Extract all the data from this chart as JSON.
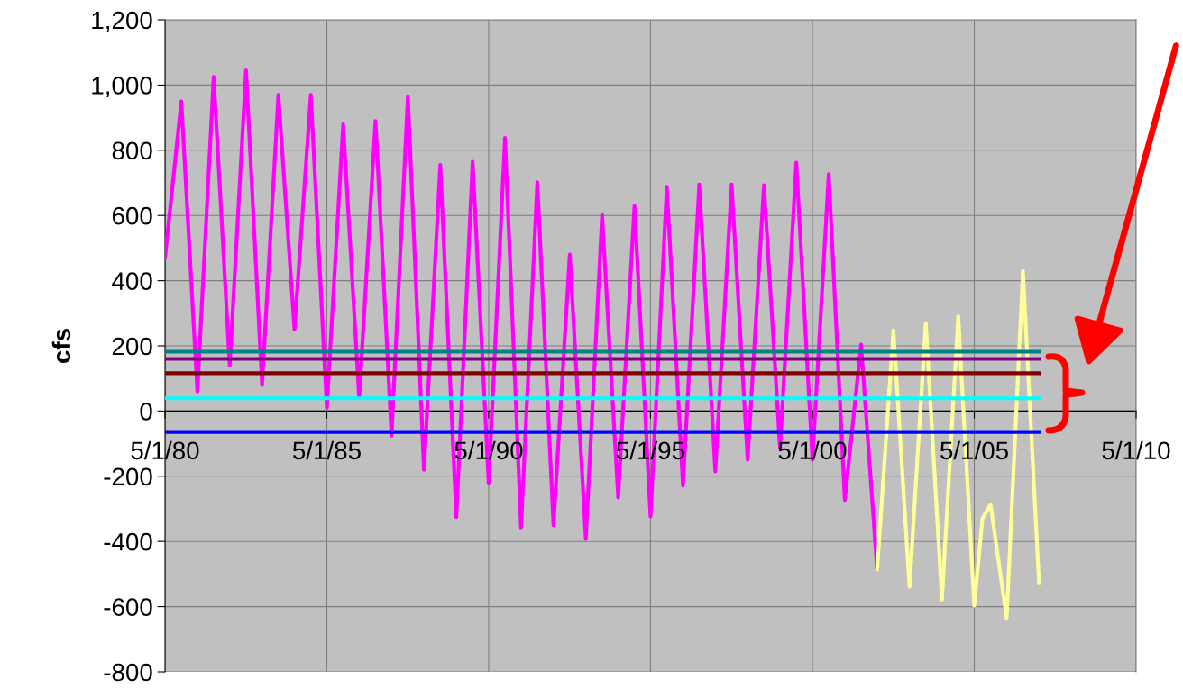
{
  "chart_data": {
    "type": "line",
    "ylabel": "cfs",
    "xlim": [
      "1980-05-01",
      "2010-05-01"
    ],
    "xticks": [
      {
        "value": "1980-05-01",
        "label": "5/1/80"
      },
      {
        "value": "1985-05-01",
        "label": "5/1/85"
      },
      {
        "value": "1990-05-01",
        "label": "5/1/90"
      },
      {
        "value": "1995-05-01",
        "label": "5/1/95"
      },
      {
        "value": "2000-05-01",
        "label": "5/1/00"
      },
      {
        "value": "2005-05-01",
        "label": "5/1/05"
      },
      {
        "value": "2010-05-01",
        "label": "5/1/10"
      }
    ],
    "ylim": [
      -800,
      1200
    ],
    "yticks": [
      {
        "value": -800,
        "label": "-800"
      },
      {
        "value": -600,
        "label": "-600"
      },
      {
        "value": -400,
        "label": "-400"
      },
      {
        "value": -200,
        "label": "-200"
      },
      {
        "value": 0,
        "label": "0"
      },
      {
        "value": 200,
        "label": "200"
      },
      {
        "value": 400,
        "label": "400"
      },
      {
        "value": 600,
        "label": "600"
      },
      {
        "value": 800,
        "label": "800"
      },
      {
        "value": 1000,
        "label": "1,000"
      },
      {
        "value": 1200,
        "label": "1,200"
      }
    ],
    "grid": true,
    "legend": false,
    "marker": "none",
    "line_style": "solid",
    "series": [
      {
        "color": "#ff00ff",
        "x": [
          "1980-05",
          "1980-11",
          "1981-05",
          "1981-11",
          "1982-05",
          "1982-11",
          "1983-05",
          "1983-11",
          "1984-05",
          "1984-11",
          "1985-05",
          "1985-11",
          "1986-05",
          "1986-11",
          "1987-05",
          "1987-11",
          "1988-05",
          "1988-11",
          "1989-05",
          "1989-11",
          "1990-05",
          "1990-11",
          "1991-05",
          "1991-11",
          "1992-05",
          "1992-11",
          "1993-05",
          "1993-11",
          "1994-05",
          "1994-11",
          "1995-05",
          "1995-11",
          "1996-05",
          "1996-11",
          "1997-05",
          "1997-11",
          "1998-05",
          "1998-11",
          "1999-05",
          "1999-11",
          "2000-05",
          "2000-11",
          "2001-05",
          "2001-11",
          "2002-05"
        ],
        "values": [
          470,
          950,
          60,
          1025,
          140,
          1045,
          80,
          970,
          250,
          970,
          10,
          880,
          40,
          890,
          -75,
          965,
          -180,
          755,
          -325,
          765,
          -220,
          838,
          -357,
          702,
          -350,
          480,
          -392,
          602,
          -265,
          630,
          -323,
          688,
          -229,
          695,
          -185,
          695,
          -149,
          693,
          -113,
          762,
          -149,
          727,
          -273,
          204,
          -486
        ]
      },
      {
        "color": "#ffff99",
        "x": [
          "2002-05",
          "2002-11",
          "2003-05",
          "2003-11",
          "2004-05",
          "2004-11",
          "2005-05",
          "2005-08",
          "2005-11",
          "2006-05",
          "2006-11",
          "2007-05"
        ],
        "values": [
          -486,
          248,
          -539,
          270,
          -578,
          290,
          -597,
          -330,
          -287,
          -635,
          430,
          -525
        ]
      },
      {
        "color": "#008080",
        "x": [
          "1980-05",
          "2007-05"
        ],
        "values": [
          182,
          182
        ]
      },
      {
        "color": "#800080",
        "x": [
          "1980-05",
          "2007-05"
        ],
        "values": [
          160,
          160
        ]
      },
      {
        "color": "#800000",
        "x": [
          "1980-05",
          "2007-05"
        ],
        "values": [
          116,
          116
        ]
      },
      {
        "color": "#00ffff",
        "x": [
          "1980-05",
          "2007-05"
        ],
        "values": [
          39,
          39
        ]
      },
      {
        "color": "#0000ff",
        "x": [
          "1980-05",
          "2007-05"
        ],
        "values": [
          -64,
          -64
        ]
      }
    ]
  }
}
